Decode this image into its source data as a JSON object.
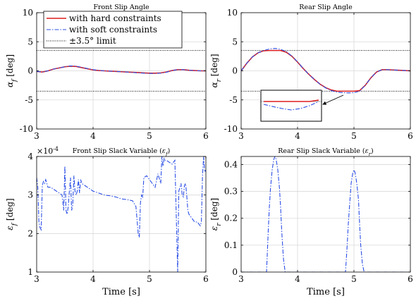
{
  "colors": {
    "hard": "#dd1f1f",
    "soft": "#2b4fe6",
    "limit": "#000000",
    "grid": "#d9d9d9"
  },
  "legend": {
    "items": [
      "with hard constraints",
      "with soft constraints",
      "±3.5° limit"
    ]
  },
  "chart_data": [
    {
      "type": "line",
      "title": "Front Slip Angle",
      "xlabel": "",
      "ylabel": "αf [deg]",
      "xlim": [
        3,
        6
      ],
      "ylim": [
        -10,
        10
      ],
      "xticks": [
        3,
        4,
        5,
        6
      ],
      "yticks": [
        -10,
        -5,
        0,
        5,
        10
      ],
      "x_tick_labels": [
        "3",
        "4",
        "5",
        "6"
      ],
      "y_tick_labels": [
        "-10",
        "-5",
        "0",
        "5",
        "10"
      ],
      "grid": true,
      "legend_position": "top-left",
      "limits": [
        3.5,
        -3.5
      ],
      "series": [
        {
          "name": "with hard constraints",
          "style": "solid",
          "x": [
            3.0,
            3.1,
            3.2,
            3.3,
            3.4,
            3.5,
            3.6,
            3.7,
            3.8,
            3.9,
            4.0,
            4.1,
            4.2,
            4.3,
            4.4,
            4.5,
            4.6,
            4.7,
            4.8,
            4.9,
            5.0,
            5.1,
            5.2,
            5.3,
            5.4,
            5.5,
            5.6,
            5.7,
            5.8,
            5.9,
            6.0
          ],
          "y": [
            -0.1,
            -0.2,
            0.0,
            0.3,
            0.5,
            0.7,
            0.8,
            0.75,
            0.55,
            0.35,
            0.15,
            0.05,
            0.0,
            -0.05,
            -0.1,
            -0.15,
            -0.2,
            -0.25,
            -0.3,
            -0.35,
            -0.4,
            -0.4,
            -0.35,
            -0.2,
            0.05,
            0.2,
            0.2,
            0.1,
            0.05,
            0.0,
            0.0
          ]
        },
        {
          "name": "with soft constraints",
          "style": "dashdot",
          "x": [
            3.0,
            3.1,
            3.2,
            3.3,
            3.4,
            3.5,
            3.6,
            3.7,
            3.8,
            3.9,
            4.0,
            4.1,
            4.2,
            4.3,
            4.4,
            4.5,
            4.6,
            4.7,
            4.8,
            4.9,
            5.0,
            5.1,
            5.2,
            5.3,
            5.4,
            5.5,
            5.6,
            5.7,
            5.8,
            5.9,
            6.0
          ],
          "y": [
            -0.1,
            -0.2,
            0.0,
            0.3,
            0.5,
            0.7,
            0.85,
            0.8,
            0.6,
            0.4,
            0.2,
            0.08,
            0.0,
            -0.05,
            -0.1,
            -0.15,
            -0.2,
            -0.28,
            -0.35,
            -0.4,
            -0.45,
            -0.45,
            -0.4,
            -0.25,
            0.05,
            0.2,
            0.2,
            0.1,
            0.05,
            0.0,
            0.0
          ]
        },
        {
          "name": "±3.5° limit",
          "style": "dotted"
        }
      ]
    },
    {
      "type": "line",
      "title": "Rear Slip Angle",
      "xlabel": "",
      "ylabel": "αr [deg]",
      "xlim": [
        3,
        6
      ],
      "ylim": [
        -10,
        10
      ],
      "xticks": [
        3,
        4,
        5,
        6
      ],
      "yticks": [
        -10,
        -5,
        0,
        5,
        10
      ],
      "x_tick_labels": [
        "3",
        "4",
        "5",
        "6"
      ],
      "y_tick_labels": [
        "-10",
        "-5",
        "0",
        "5",
        "10"
      ],
      "grid": true,
      "limits": [
        3.5,
        -3.5
      ],
      "series": [
        {
          "name": "with hard constraints",
          "style": "solid",
          "x": [
            3.0,
            3.1,
            3.2,
            3.3,
            3.4,
            3.5,
            3.6,
            3.7,
            3.8,
            3.9,
            4.0,
            4.1,
            4.2,
            4.3,
            4.4,
            4.5,
            4.6,
            4.7,
            4.8,
            4.9,
            5.0,
            5.1,
            5.2,
            5.3,
            5.4,
            5.5,
            5.6,
            5.7,
            5.8,
            5.9,
            6.0
          ],
          "y": [
            0.0,
            1.3,
            2.4,
            3.1,
            3.45,
            3.5,
            3.5,
            3.5,
            3.2,
            2.5,
            1.5,
            0.4,
            -0.6,
            -1.5,
            -2.3,
            -2.9,
            -3.3,
            -3.5,
            -3.5,
            -3.5,
            -3.5,
            -3.4,
            -2.5,
            -1.2,
            -0.2,
            0.2,
            0.2,
            0.15,
            0.1,
            0.05,
            0.0
          ]
        },
        {
          "name": "with soft constraints",
          "style": "dashdot",
          "x": [
            3.0,
            3.1,
            3.2,
            3.3,
            3.4,
            3.5,
            3.6,
            3.7,
            3.8,
            3.9,
            4.0,
            4.1,
            4.2,
            4.3,
            4.4,
            4.5,
            4.6,
            4.7,
            4.8,
            4.9,
            5.0,
            5.1,
            5.2,
            5.3,
            5.4,
            5.5,
            5.6,
            5.7,
            5.8,
            5.9,
            6.0
          ],
          "y": [
            0.0,
            1.3,
            2.4,
            3.1,
            3.5,
            3.75,
            3.85,
            3.7,
            3.3,
            2.55,
            1.55,
            0.4,
            -0.6,
            -1.5,
            -2.3,
            -2.95,
            -3.4,
            -3.65,
            -3.75,
            -3.8,
            -3.75,
            -3.5,
            -2.5,
            -1.2,
            -0.2,
            0.2,
            0.2,
            0.15,
            0.1,
            0.05,
            0.0
          ]
        },
        {
          "name": "±3.5° limit",
          "style": "dotted"
        }
      ],
      "inset": {
        "note": "magnified view",
        "xlim": [
          4.6,
          5.2
        ],
        "hard_y": [
          -3.5,
          -3.5,
          -3.5,
          -3.5,
          -3.5,
          -3.5,
          -3.45
        ],
        "soft_y": [
          -3.6,
          -3.68,
          -3.75,
          -3.8,
          -3.75,
          -3.65,
          -3.5
        ]
      }
    },
    {
      "type": "line",
      "title": "Front Slip Slack Variable (εf)",
      "xlabel": "",
      "ylabel": "εf [deg]",
      "xlim": [
        3,
        6
      ],
      "ylim": [
        1,
        4
      ],
      "xticks": [
        3,
        4,
        5,
        6
      ],
      "yticks": [
        1,
        2,
        3,
        4
      ],
      "x_tick_labels": [
        "3",
        "4",
        "5",
        "6"
      ],
      "y_tick_labels": [
        "1",
        "2",
        "3",
        "4"
      ],
      "y_exponent": "× 10^-4",
      "grid": true,
      "series": [
        {
          "name": "with soft constraints",
          "style": "dashdot",
          "x": [
            3.0,
            3.02,
            3.04,
            3.06,
            3.08,
            3.1,
            3.12,
            3.14,
            3.16,
            3.18,
            3.2,
            3.25,
            3.3,
            3.35,
            3.4,
            3.45,
            3.48,
            3.5,
            3.52,
            3.54,
            3.56,
            3.58,
            3.6,
            3.62,
            3.64,
            3.66,
            3.68,
            3.7,
            3.72,
            3.74,
            3.76,
            3.78,
            3.8,
            3.85,
            3.9,
            4.0,
            4.1,
            4.2,
            4.3,
            4.4,
            4.5,
            4.6,
            4.7,
            4.76,
            4.8,
            4.82,
            4.84,
            4.86,
            4.88,
            4.9,
            4.95,
            5.0,
            5.05,
            5.1,
            5.15,
            5.2,
            5.22,
            5.24,
            5.26,
            5.28,
            5.3,
            5.35,
            5.4,
            5.45,
            5.5,
            5.52,
            5.54,
            5.56,
            5.58,
            5.6,
            5.62,
            5.64,
            5.66,
            5.68,
            5.7,
            5.75,
            5.8,
            5.85,
            5.9,
            5.92,
            5.94,
            5.96,
            5.98,
            6.0
          ],
          "y": [
            3.45,
            3.2,
            2.3,
            2.15,
            2.1,
            3.25,
            3.35,
            3.3,
            3.4,
            3.3,
            3.2,
            3.2,
            3.15,
            3.1,
            3.05,
            3.0,
            2.6,
            3.75,
            2.6,
            2.5,
            2.7,
            3.1,
            3.45,
            2.6,
            2.75,
            3.5,
            3.1,
            3.0,
            3.1,
            3.4,
            3.05,
            3.4,
            3.3,
            3.25,
            3.2,
            3.1,
            3.05,
            3.0,
            2.98,
            2.95,
            2.9,
            2.88,
            2.85,
            2.7,
            2.0,
            1.9,
            2.8,
            3.0,
            2.95,
            3.45,
            3.5,
            3.4,
            3.3,
            3.2,
            3.55,
            3.3,
            4.0,
            3.75,
            3.95,
            3.9,
            3.9,
            3.85,
            3.8,
            3.9,
            1.0,
            3.1,
            3.2,
            3.3,
            3.0,
            2.95,
            3.25,
            3.3,
            3.0,
            2.6,
            2.5,
            2.4,
            2.3,
            2.3,
            2.2,
            2.3,
            3.5,
            4.0,
            3.6,
            3.65
          ]
        }
      ]
    },
    {
      "type": "line",
      "title": "Rear Slip Slack Variable (εr)",
      "xlabel": "",
      "ylabel": "εr [deg]",
      "xlim": [
        3,
        6
      ],
      "ylim": [
        0,
        0.43
      ],
      "xticks": [
        3,
        4,
        5,
        6
      ],
      "yticks": [
        0,
        0.1,
        0.2,
        0.3,
        0.4
      ],
      "x_tick_labels": [
        "3",
        "4",
        "5",
        "6"
      ],
      "y_tick_labels": [
        "0",
        "0.1",
        "0.2",
        "0.3",
        "0.4"
      ],
      "grid": true,
      "series": [
        {
          "name": "with soft constraints",
          "style": "dashdot",
          "x": [
            3.0,
            3.45,
            3.48,
            3.5,
            3.52,
            3.55,
            3.58,
            3.6,
            3.62,
            3.65,
            3.68,
            3.7,
            3.72,
            3.75,
            3.78,
            4.85,
            4.88,
            4.9,
            4.93,
            4.95,
            4.98,
            5.0,
            5.02,
            5.05,
            5.08,
            5.1,
            5.12,
            5.15,
            5.18,
            6.0
          ],
          "y": [
            0.0,
            0.0,
            0.15,
            0.24,
            0.31,
            0.38,
            0.42,
            0.43,
            0.42,
            0.38,
            0.31,
            0.24,
            0.15,
            0.05,
            0.0,
            0.0,
            0.1,
            0.18,
            0.27,
            0.33,
            0.37,
            0.38,
            0.37,
            0.33,
            0.27,
            0.18,
            0.1,
            0.03,
            0.0,
            0.0
          ]
        }
      ]
    }
  ],
  "shared_xlabel": "Time [s]"
}
